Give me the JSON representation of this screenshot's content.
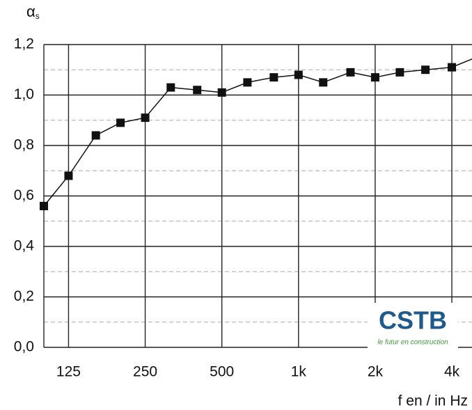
{
  "chart_data": {
    "type": "line",
    "ylabel": {
      "symbol": "α",
      "subscript": "s"
    },
    "xlabel": "f en / in Hz",
    "x": [
      100,
      125,
      160,
      200,
      250,
      315,
      400,
      500,
      630,
      800,
      1000,
      1250,
      1600,
      2000,
      2500,
      3150,
      4000,
      5000
    ],
    "series": [
      {
        "name": "αs",
        "color": "#111111",
        "values": [
          0.56,
          0.68,
          0.84,
          0.89,
          0.91,
          1.03,
          1.02,
          1.01,
          1.05,
          1.07,
          1.08,
          1.05,
          1.09,
          1.07,
          1.09,
          1.1,
          1.11,
          1.15
        ]
      }
    ],
    "xscale": "log",
    "xlim": [
      100,
      4800
    ],
    "xticks": [
      125,
      250,
      500,
      {
        "value": 1000,
        "label": "1k"
      },
      {
        "value": 2000,
        "label": "2k"
      },
      {
        "value": 4000,
        "label": "4k"
      }
    ],
    "ylim": [
      0,
      1.2
    ],
    "yticks": [
      {
        "value": 0,
        "label": "0,0"
      },
      {
        "value": 0.2,
        "label": "0,2"
      },
      {
        "value": 0.4,
        "label": "0,4"
      },
      {
        "value": 0.6,
        "label": "0,6"
      },
      {
        "value": 0.8,
        "label": "0,8"
      },
      {
        "value": 1.0,
        "label": "1,0"
      },
      {
        "value": 1.2,
        "label": "1,2"
      }
    ],
    "grid": true,
    "logo": {
      "name": "CSTB",
      "tagline": "le futur en construction"
    }
  }
}
